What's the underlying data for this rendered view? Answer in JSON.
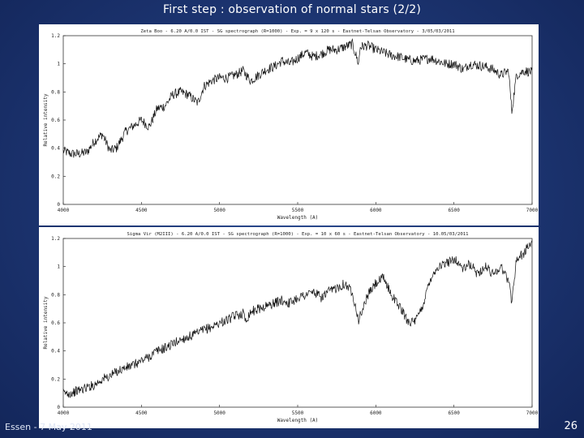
{
  "slide": {
    "title": "First step : observation of normal stars (2/2)",
    "footer_left": "Essen - 7 May 2011",
    "page_number": "26"
  },
  "colors": {
    "background": "#1c3470",
    "line": "#111111",
    "text": "#ffffff"
  },
  "chart_data": [
    {
      "type": "line",
      "title": "Zeta Boo - 6.20 A/0.0 IST - SG spectrograph (R=1000) - Exp. = 9 x 120 s - Eastnet-Telsan Observatory - 3/05/03/2011",
      "xlabel": "Wavelength (A)",
      "ylabel": "Relative intensity",
      "xlim": [
        4000,
        7000
      ],
      "ylim": [
        0,
        1.2
      ],
      "xticks": [
        "4000",
        "4500",
        "5000",
        "5500",
        "6000",
        "6500",
        "7000"
      ],
      "yticks": [
        "0",
        "0.2",
        "0.4",
        "0.6",
        "0.8",
        "1",
        "1.2"
      ],
      "grid": false,
      "series": [
        {
          "x": [
            4000,
            4050,
            4100,
            4150,
            4200,
            4250,
            4300,
            4340,
            4400,
            4450,
            4500,
            4550,
            4600,
            4650,
            4700,
            4750,
            4800,
            4861,
            4900,
            4950,
            5000,
            5050,
            5100,
            5150,
            5200,
            5250,
            5300,
            5350,
            5400,
            5450,
            5500,
            5550,
            5600,
            5650,
            5700,
            5750,
            5800,
            5850,
            5890,
            5900,
            5950,
            6000,
            6050,
            6100,
            6150,
            6200,
            6250,
            6300,
            6350,
            6400,
            6450,
            6500,
            6563,
            6600,
            6650,
            6700,
            6750,
            6800,
            6850,
            6870,
            6900,
            6950,
            7000
          ],
          "y": [
            0.38,
            0.36,
            0.36,
            0.37,
            0.45,
            0.5,
            0.38,
            0.4,
            0.52,
            0.56,
            0.6,
            0.55,
            0.68,
            0.7,
            0.78,
            0.8,
            0.78,
            0.72,
            0.84,
            0.88,
            0.9,
            0.9,
            0.92,
            0.95,
            0.88,
            0.92,
            0.96,
            0.98,
            1.02,
            1.0,
            1.04,
            1.08,
            1.05,
            1.07,
            1.1,
            1.1,
            1.12,
            1.14,
            1.0,
            1.12,
            1.13,
            1.1,
            1.08,
            1.06,
            1.05,
            1.03,
            1.02,
            1.03,
            1.04,
            1.02,
            1.0,
            1.0,
            0.96,
            1.0,
            0.99,
            0.98,
            0.96,
            0.92,
            0.95,
            0.66,
            0.92,
            0.95,
            0.94
          ]
        }
      ]
    },
    {
      "type": "line",
      "title": "Sigma Vir (M2III) - 6.20 A/0.0 IST - SG spectrograph (R=1000) - Exp. = 10 x 60 s - Eastnet-Telsan Observatory - 10.05/03/2011",
      "xlabel": "Wavelength (A)",
      "ylabel": "Relative intensity",
      "xlim": [
        4000,
        7000
      ],
      "ylim": [
        0,
        1.2
      ],
      "xticks": [
        "4000",
        "4500",
        "5000",
        "5500",
        "6000",
        "6500",
        "7000"
      ],
      "yticks": [
        "0",
        "0.2",
        "0.4",
        "0.6",
        "0.8",
        "1",
        "1.2"
      ],
      "grid": false,
      "series": [
        {
          "x": [
            4000,
            4050,
            4100,
            4150,
            4200,
            4250,
            4300,
            4350,
            4400,
            4450,
            4500,
            4550,
            4600,
            4650,
            4700,
            4750,
            4800,
            4850,
            4900,
            4950,
            5000,
            5050,
            5100,
            5150,
            5168,
            5200,
            5250,
            5300,
            5350,
            5400,
            5450,
            5500,
            5550,
            5600,
            5650,
            5700,
            5750,
            5800,
            5850,
            5890,
            5950,
            6000,
            6050,
            6100,
            6150,
            6200,
            6250,
            6300,
            6350,
            6400,
            6450,
            6500,
            6563,
            6600,
            6650,
            6700,
            6750,
            6800,
            6850,
            6870,
            6900,
            6950,
            7000
          ],
          "y": [
            0.1,
            0.1,
            0.12,
            0.14,
            0.16,
            0.2,
            0.22,
            0.26,
            0.28,
            0.3,
            0.33,
            0.36,
            0.4,
            0.42,
            0.45,
            0.48,
            0.5,
            0.52,
            0.55,
            0.57,
            0.6,
            0.62,
            0.65,
            0.67,
            0.62,
            0.68,
            0.7,
            0.72,
            0.74,
            0.76,
            0.74,
            0.78,
            0.8,
            0.82,
            0.78,
            0.82,
            0.85,
            0.88,
            0.82,
            0.62,
            0.8,
            0.88,
            0.92,
            0.8,
            0.72,
            0.62,
            0.6,
            0.72,
            0.92,
            1.0,
            1.02,
            1.06,
            0.98,
            1.02,
            0.95,
            1.0,
            0.95,
            1.0,
            0.9,
            0.75,
            1.05,
            1.1,
            1.18
          ]
        }
      ]
    }
  ]
}
